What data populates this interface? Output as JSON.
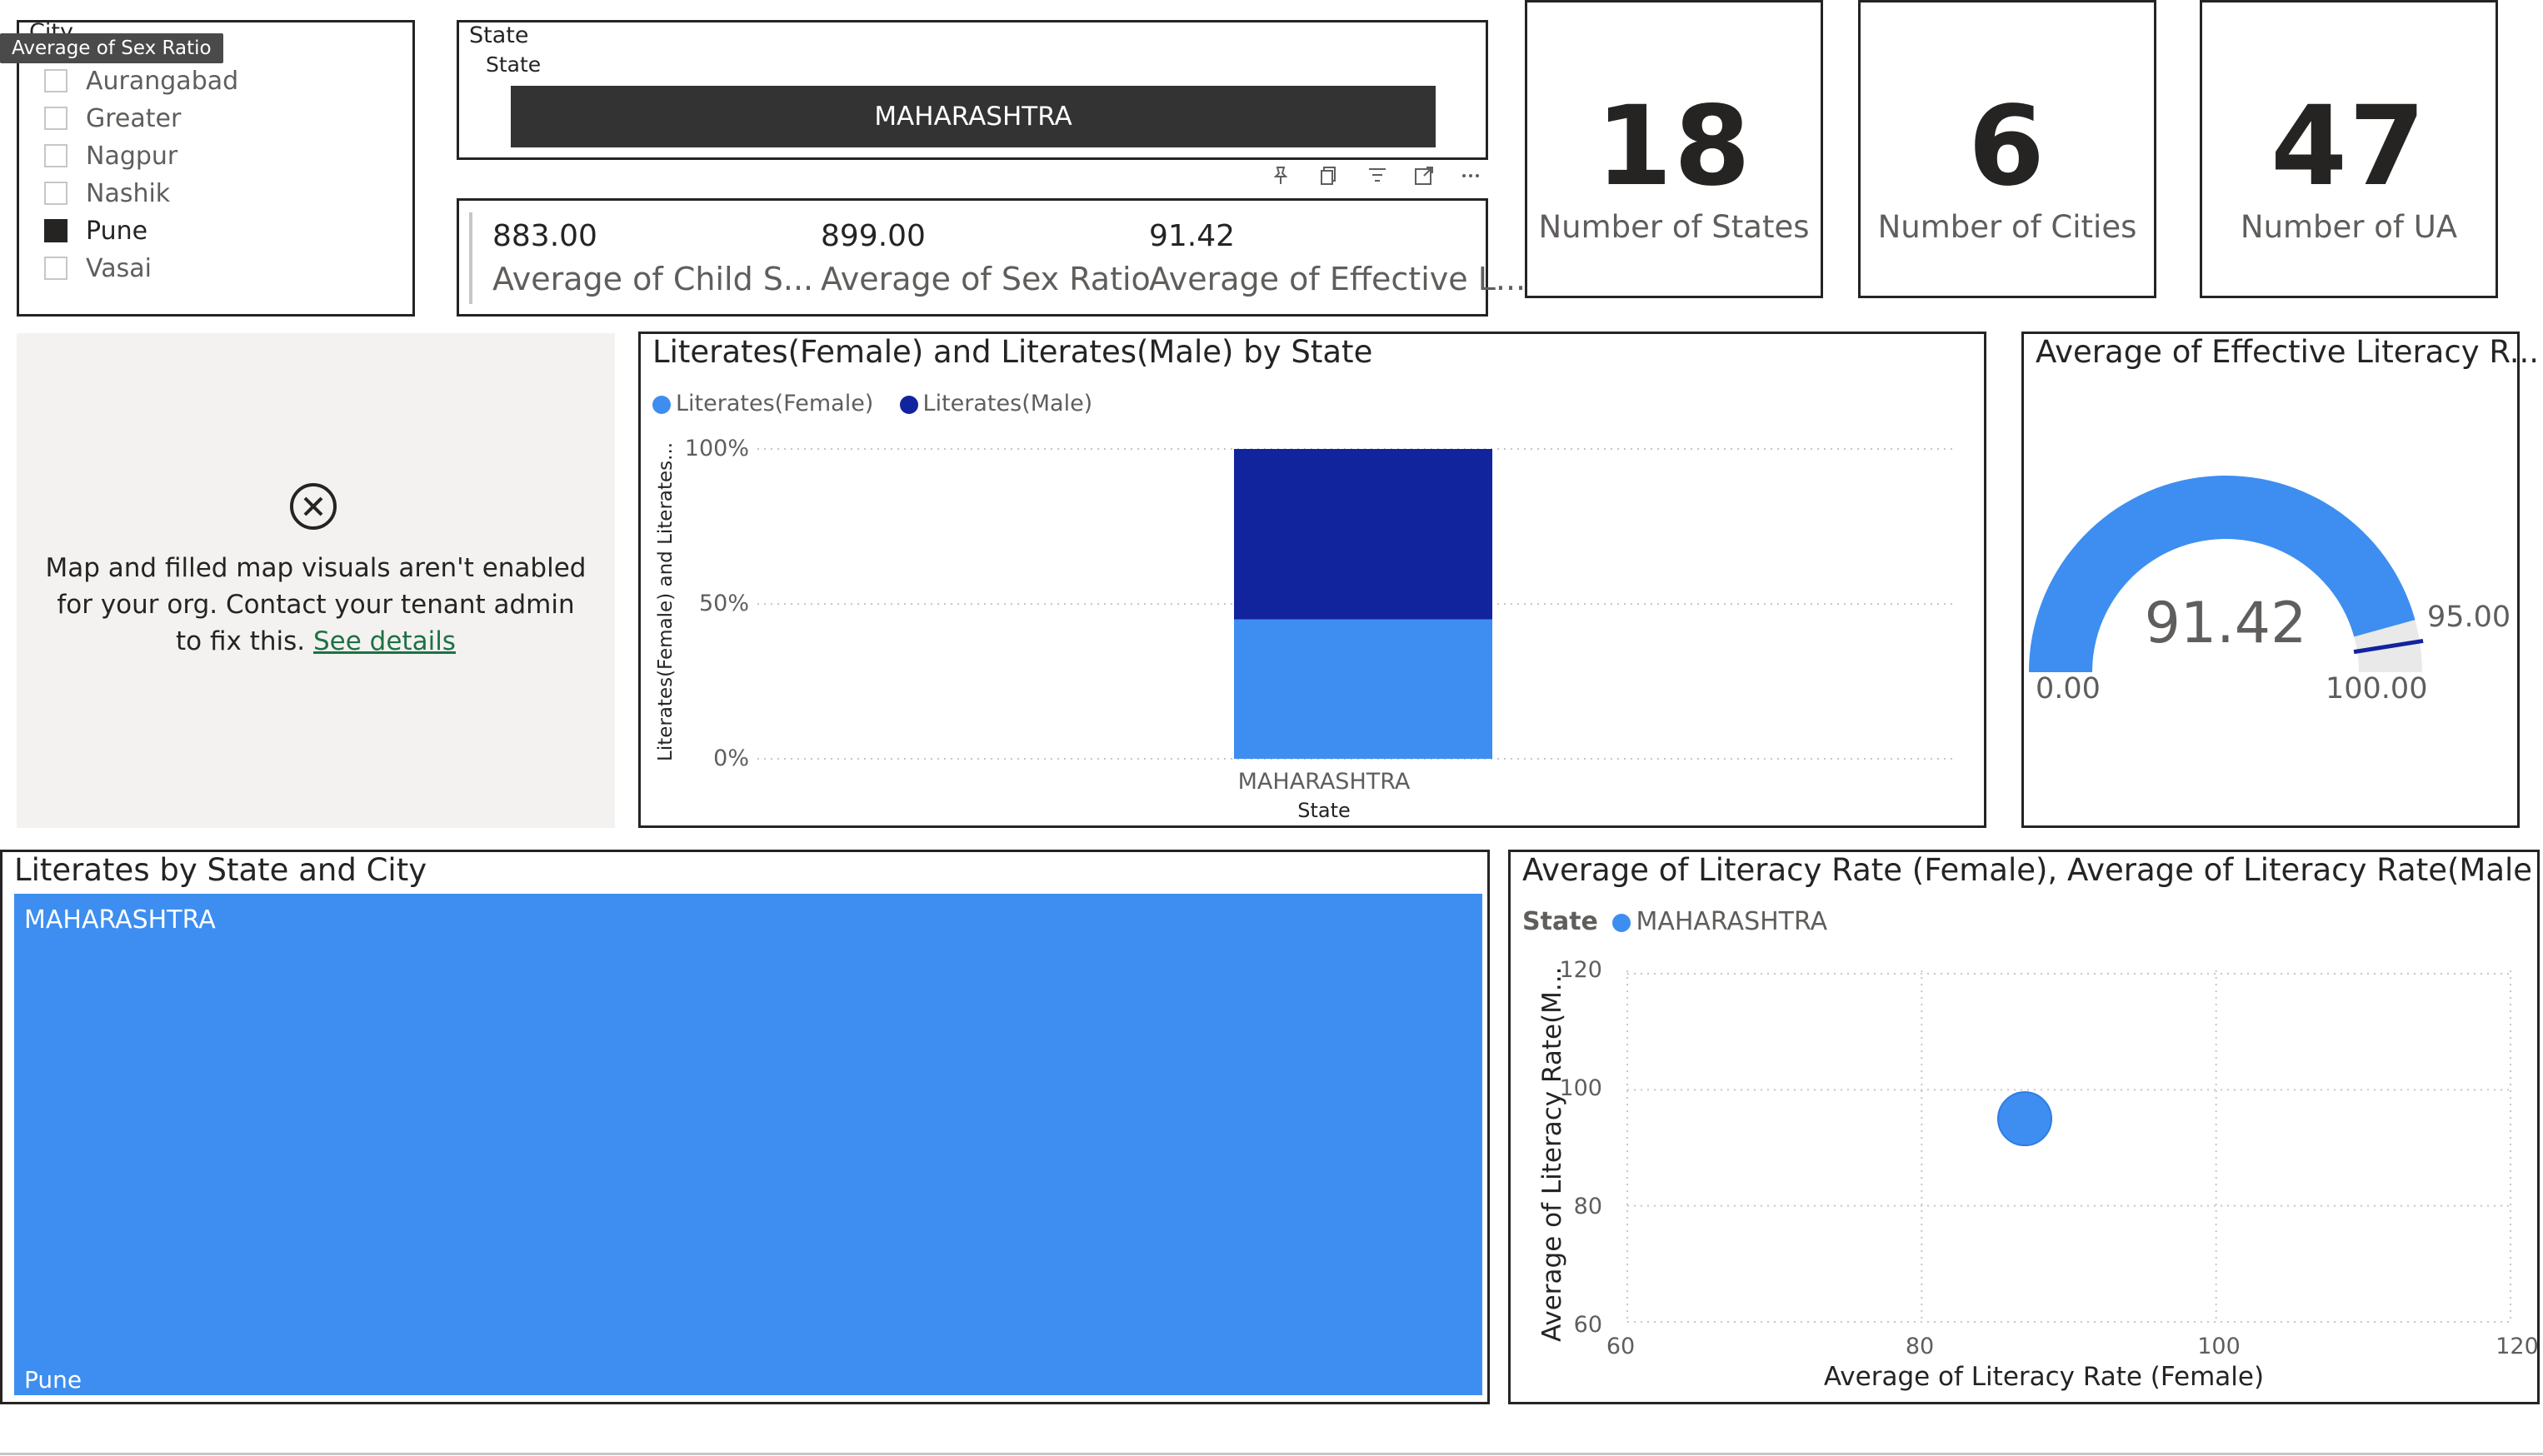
{
  "tooltip": "Average of Sex Ratio",
  "city_slicer": {
    "header": "City",
    "items": [
      {
        "label": "Aurangabad",
        "checked": false
      },
      {
        "label": "Greater",
        "checked": false
      },
      {
        "label": "Nagpur",
        "checked": false
      },
      {
        "label": "Nashik",
        "checked": false
      },
      {
        "label": "Pune",
        "checked": true
      },
      {
        "label": "Vasai",
        "checked": false
      }
    ]
  },
  "state_slicer": {
    "header": "State",
    "subheader": "State",
    "selected": "MAHARASHTRA"
  },
  "visual_toolbar": [
    "pin-icon",
    "copy-icon",
    "filter-icon",
    "focus-icon",
    "more-options-icon"
  ],
  "multi_row_card": [
    {
      "value": "883.00",
      "label": "Average of Child S..."
    },
    {
      "value": "899.00",
      "label": "Average of Sex Ratio"
    },
    {
      "value": "91.42",
      "label": "Average of Effective L..."
    }
  ],
  "kpis": [
    {
      "value": "18",
      "label": "Number of States"
    },
    {
      "value": "6",
      "label": "Number of Cities"
    },
    {
      "value": "47",
      "label": "Number of UA"
    }
  ],
  "map_placeholder": {
    "message_line1": "Map and filled map visuals aren't enabled",
    "message_line2": "for your org. Contact your tenant admin",
    "message_line3": "to fix this.",
    "link": "See details"
  },
  "stacked_bar": {
    "title": "Literates(Female) and Literates(Male) by State",
    "legend": [
      {
        "name": "Literates(Female)",
        "color": "#3d8ef0"
      },
      {
        "name": "Literates(Male)",
        "color": "#12239e"
      }
    ],
    "y_ticks": [
      "100%",
      "50%",
      "0%"
    ],
    "ylabel": "Literates(Female) and Literates...",
    "category": "MAHARASHTRA",
    "xlabel": "State"
  },
  "gauge": {
    "title": "Average of Effective Literacy R...",
    "value_label": "91.42",
    "min_label": "0.00",
    "max_label": "100.00",
    "target_label": "95.00"
  },
  "treemap": {
    "title": "Literates by State and City",
    "state": "MAHARASHTRA",
    "city": "Pune",
    "color": "#3d8ef0"
  },
  "scatter": {
    "title": "Average of Literacy Rate (Female), Average of Literacy Rate(Male) a...",
    "legend_title": "State",
    "legend_item": "MAHARASHTRA",
    "ylabel": "Average of Literacy Rate(M...",
    "xlabel": "Average of Literacy Rate (Female)",
    "x_ticks": [
      "60",
      "80",
      "100",
      "120"
    ],
    "y_ticks": [
      "120",
      "100",
      "80",
      "60"
    ]
  },
  "chart_data": [
    {
      "type": "bar",
      "title": "Literates(Female) and Literates(Male) by State",
      "categories": [
        "MAHARASHTRA"
      ],
      "series": [
        {
          "name": "Literates(Female)",
          "values": [
            0.45
          ]
        },
        {
          "name": "Literates(Male)",
          "values": [
            0.55
          ]
        }
      ],
      "stacking": "100%",
      "xlabel": "State",
      "ylabel": "Literates(Female) and Literates...",
      "ylim": [
        0,
        1
      ],
      "legend": "top-left",
      "grid": true
    },
    {
      "type": "gauge",
      "title": "Average of Effective Literacy R...",
      "value": 91.42,
      "min": 0,
      "max": 100,
      "target": 95
    },
    {
      "type": "scatter",
      "title": "Average of Literacy Rate (Female), Average of Literacy Rate(Male) a...",
      "series": [
        {
          "name": "MAHARASHTRA",
          "points": [
            {
              "x": 87,
              "y": 95
            }
          ]
        }
      ],
      "xlabel": "Average of Literacy Rate (Female)",
      "ylabel": "Average of Literacy Rate(M...",
      "xlim": [
        60,
        120
      ],
      "ylim": [
        60,
        120
      ],
      "grid": true,
      "legend": "top-left"
    },
    {
      "type": "treemap",
      "title": "Literates by State and City",
      "nodes": [
        {
          "group": "MAHARASHTRA",
          "label": "Pune",
          "share": 1.0
        }
      ]
    }
  ]
}
